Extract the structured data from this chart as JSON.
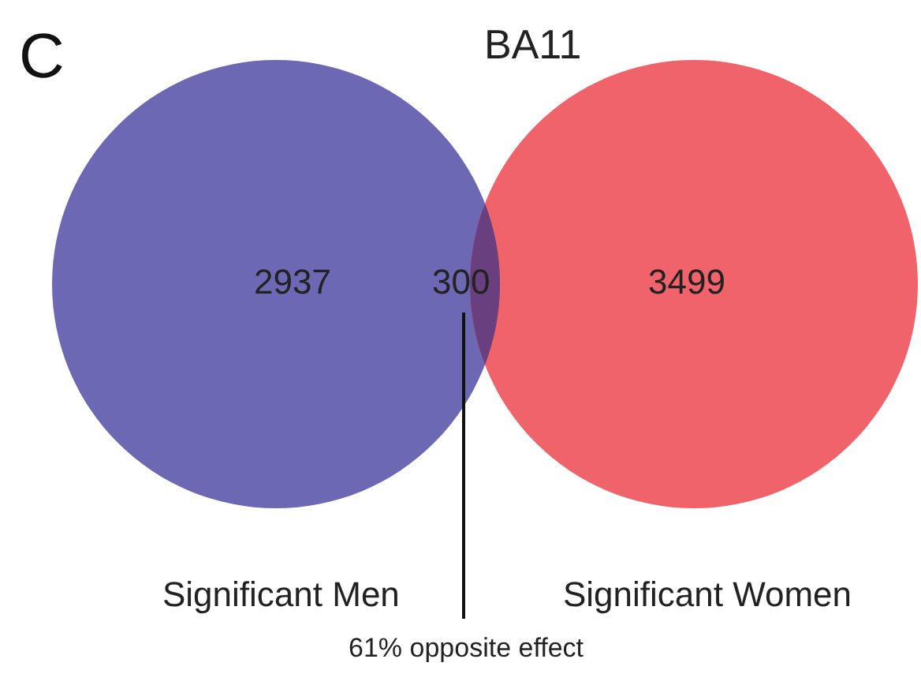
{
  "chart_data": {
    "type": "other",
    "title": "BA11",
    "categories": [
      "Significant Men",
      null,
      "Significant Women"
    ],
    "values": [
      2937,
      300,
      3499
    ],
    "data_labels": true,
    "colors": [
      "#6c68b3",
      "#6a3f80",
      "#f1636a"
    ],
    "annotations": [
      "C",
      "61% opposite effect"
    ]
  }
}
